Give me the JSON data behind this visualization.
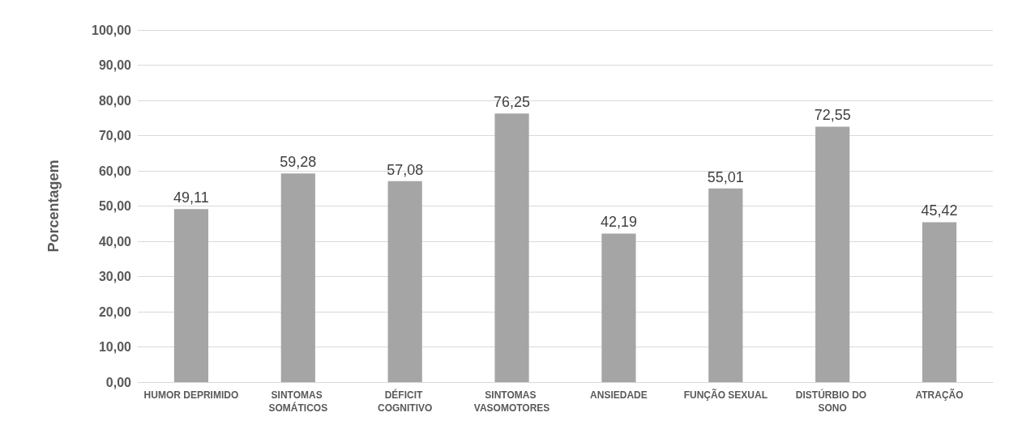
{
  "chart_data": {
    "type": "bar",
    "ylabel": "Porcentagem",
    "categories": [
      "HUMOR DEPRIMIDO",
      "SINTOMAS SOMÁTICOS",
      "DÉFICIT COGNITIVO",
      "SINTOMAS VASOMOTORES",
      "ANSIEDADE",
      "FUNÇÃO SEXUAL",
      "DISTÚRBIO DO SONO",
      "ATRAÇÃO"
    ],
    "values": [
      49.11,
      59.28,
      57.08,
      76.25,
      42.19,
      55.01,
      72.55,
      45.42
    ],
    "value_labels": [
      "49,11",
      "59,28",
      "57,08",
      "76,25",
      "42,19",
      "55,01",
      "72,55",
      "45,42"
    ],
    "color": "#a5a5a5",
    "ylim": [
      0,
      100
    ],
    "yticks": [
      {
        "value": 0,
        "label": "0,00"
      },
      {
        "value": 10,
        "label": "10,00"
      },
      {
        "value": 20,
        "label": "20,00"
      },
      {
        "value": 30,
        "label": "30,00"
      },
      {
        "value": 40,
        "label": "40,00"
      },
      {
        "value": 50,
        "label": "50,00"
      },
      {
        "value": 60,
        "label": "60,00"
      },
      {
        "value": 70,
        "label": "70,00"
      },
      {
        "value": 80,
        "label": "80,00"
      },
      {
        "value": 90,
        "label": "90,00"
      },
      {
        "value": 100,
        "label": "100,00"
      }
    ],
    "grid": "y"
  }
}
